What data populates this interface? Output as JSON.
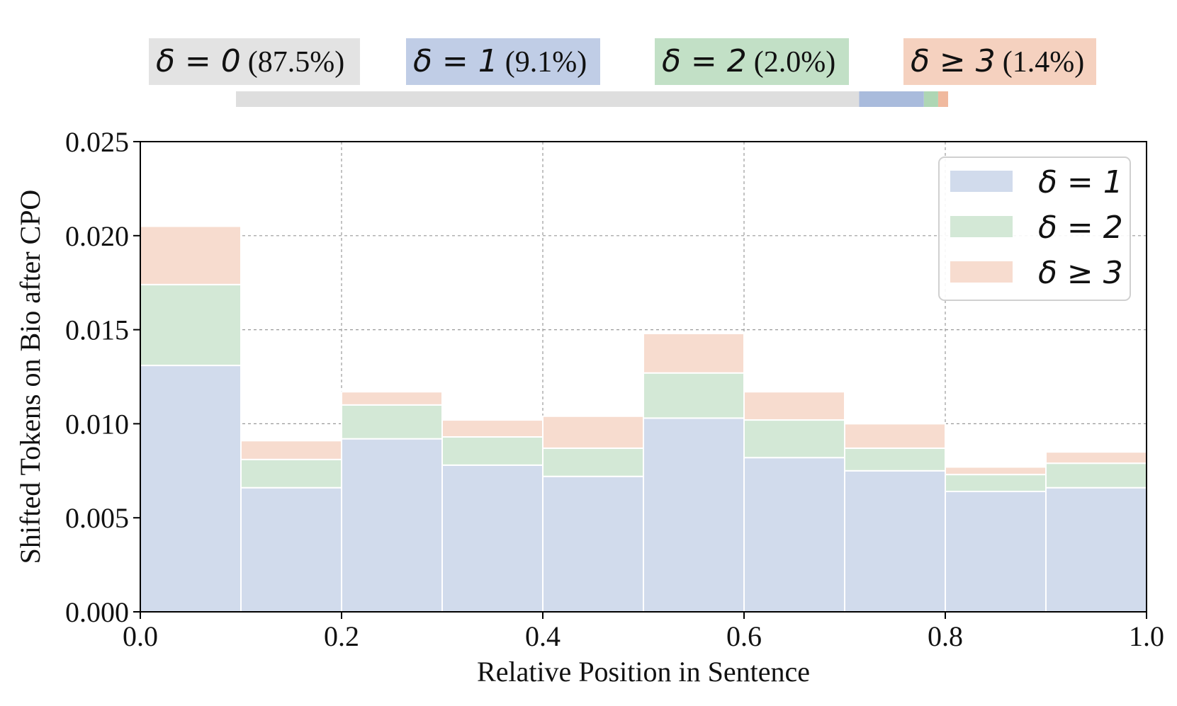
{
  "chart_data": {
    "type": "bar",
    "stacked": true,
    "histogram": true,
    "xlabel": "Relative Position in Sentence",
    "ylabel": "Shifted Tokens on Bio after CPO",
    "xlim": [
      0.0,
      1.0
    ],
    "ylim": [
      0.0,
      0.025
    ],
    "xticks": [
      "0.0",
      "0.2",
      "0.4",
      "0.6",
      "0.8",
      "1.0"
    ],
    "yticks": [
      "0.000",
      "0.005",
      "0.010",
      "0.015",
      "0.020",
      "0.025"
    ],
    "grid": true,
    "legend_position": "top-right",
    "bin_edges": [
      0.0,
      0.1,
      0.2,
      0.3,
      0.4,
      0.5,
      0.6,
      0.7,
      0.8,
      0.9,
      1.0
    ],
    "series": [
      {
        "name": "δ = 1",
        "color": "#d1dbec",
        "values": [
          0.0131,
          0.0066,
          0.0092,
          0.0078,
          0.0072,
          0.0103,
          0.0082,
          0.0075,
          0.0064,
          0.0066
        ]
      },
      {
        "name": "δ = 2",
        "color": "#d3e8d6",
        "values": [
          0.0043,
          0.0015,
          0.0018,
          0.0015,
          0.0015,
          0.0024,
          0.002,
          0.0012,
          0.0009,
          0.0013
        ]
      },
      {
        "name": "δ ≥ 3",
        "color": "#f7dccf",
        "values": [
          0.0031,
          0.001,
          0.0007,
          0.0009,
          0.0017,
          0.0021,
          0.0015,
          0.0013,
          0.0004,
          0.0006
        ]
      }
    ],
    "summary": [
      {
        "symbol": "δ = 0",
        "percent": "(87.5%)",
        "value": 87.5,
        "color": "#e3e3e3",
        "bar_color": "#dedede"
      },
      {
        "symbol": "δ = 1",
        "percent": "(9.1%)",
        "value": 9.1,
        "color": "#c0cde6",
        "bar_color": "#a9bbdc"
      },
      {
        "symbol": "δ = 2",
        "percent": "(2.0%)",
        "value": 2.0,
        "color": "#c2e0c6",
        "bar_color": "#aed6b4"
      },
      {
        "symbol": "δ ≥ 3",
        "percent": "(1.4%)",
        "value": 1.4,
        "color": "#f5d1bf",
        "bar_color": "#f0b99e"
      }
    ]
  }
}
